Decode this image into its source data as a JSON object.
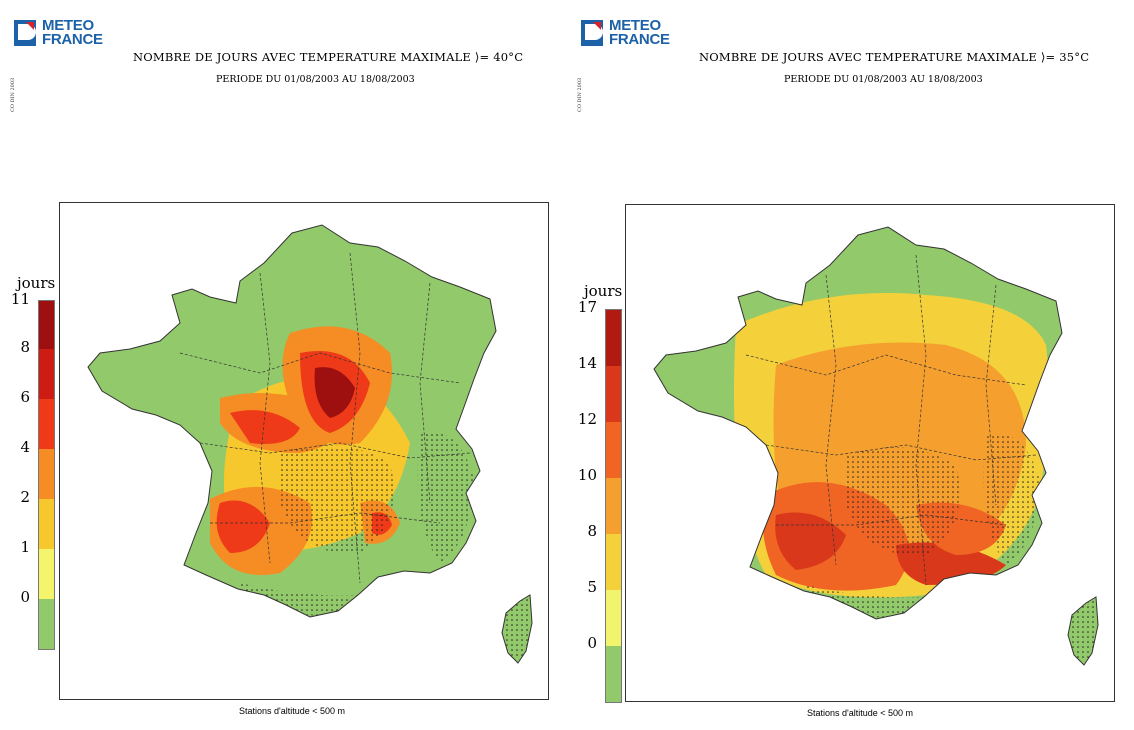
{
  "brand": {
    "line1": "METEO",
    "line2": "FRANCE",
    "blue": "#1d62a8",
    "red": "#d8222a"
  },
  "panels": [
    {
      "title": "NOMBRE DE JOURS AVEC TEMPERATURE MAXIMALE ⟩= 40°C",
      "subtitle": "PERIODE DU 01/08/2003 AU 18/08/2003",
      "legend_title": "jours",
      "legend_ticks": [
        "11",
        "8",
        "6",
        "4",
        "2",
        "1",
        "0"
      ],
      "legend_colors": [
        "#9e0f0f",
        "#cc1c14",
        "#ee3a18",
        "#f58c24",
        "#f7c82d",
        "#f4f56a",
        "#92c96b"
      ],
      "footnote": "Stations d'altitude < 500 m"
    },
    {
      "title": "NOMBRE DE JOURS AVEC TEMPERATURE MAXIMALE ⟩= 35°C",
      "subtitle": "PERIODE DU 01/08/2003 AU 18/08/2003",
      "legend_title": "jours",
      "legend_ticks": [
        "17",
        "14",
        "12",
        "10",
        "8",
        "5",
        "0"
      ],
      "legend_colors": [
        "#b01a10",
        "#d9391a",
        "#f06424",
        "#f5a02e",
        "#f4d13a",
        "#f2f46e",
        "#92c96b"
      ],
      "footnote": "Stations d'altitude < 500 m"
    }
  ],
  "map_colors": {
    "base": "#92c96b",
    "border": "#333333",
    "stipple": "#222222"
  }
}
